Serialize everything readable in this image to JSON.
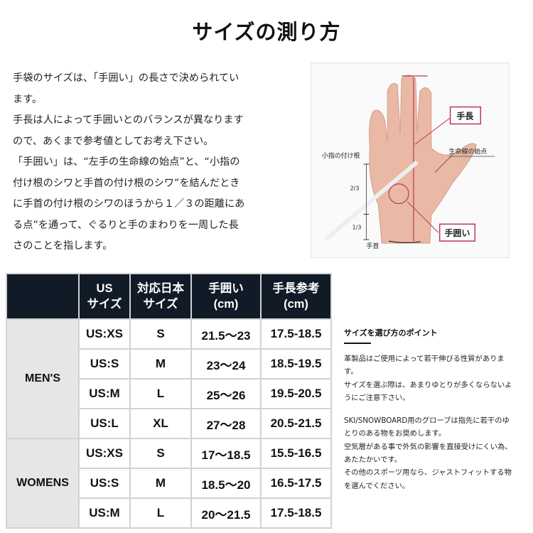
{
  "title": "サイズの測り方",
  "intro": [
    "手袋のサイズは、「手囲い」の長さで決められてい",
    "ます。",
    "手長は人によって手囲いとのバランスが異なります",
    "ので、あくまで参考値としてお考え下さい。",
    "「手囲い」は、“左手の生命線の始点”と、“小指の",
    "付け根のシワと手首の付け根のシワ”を結んだとき",
    "に手首の付け根のシワのほうから１／３の距離にあ",
    "る点”を通って、ぐるりと手のまわりを一周した長",
    "さのことを指します。"
  ],
  "photo": {
    "hand_length": "手長",
    "lifeline_start": "生命線の始点",
    "pinky_base": "小指の付け根",
    "two_thirds": "2/3",
    "one_third": "1/3",
    "wrist": "手首",
    "hand_circ": "手囲い",
    "accent": "#b8375a"
  },
  "table": {
    "headers": [
      [
        "",
        ""
      ],
      [
        "US",
        "サイズ"
      ],
      [
        "対応日本",
        "サイズ"
      ],
      [
        "手囲い",
        "(cm)"
      ],
      [
        "手長参考",
        "(cm)"
      ]
    ],
    "groups": [
      {
        "label": "MEN'S",
        "rows": [
          [
            "US:XS",
            "S",
            "21.5〜23",
            "17.5-18.5"
          ],
          [
            "US:S",
            "M",
            "23〜24",
            "18.5-19.5"
          ],
          [
            "US:M",
            "L",
            "25〜26",
            "19.5-20.5"
          ],
          [
            "US:L",
            "XL",
            "27〜28",
            "20.5-21.5"
          ]
        ]
      },
      {
        "label": "WOMENS",
        "rows": [
          [
            "US:XS",
            "S",
            "17〜18.5",
            "15.5-16.5"
          ],
          [
            "US:S",
            "M",
            "18.5〜20",
            "16.5-17.5"
          ],
          [
            "US:M",
            "L",
            "20〜21.5",
            "17.5-18.5"
          ]
        ]
      }
    ]
  },
  "tips": {
    "heading": "サイズを選び方のポイント",
    "para1": [
      "革製品はご使用によって若干伸びる性質がありま",
      "す。",
      "サイズを選ぶ際は、あまりゆとりが多くならないよ",
      "うにご注意下さい。"
    ],
    "para2": [
      "SKI/SNOWBOARD用のグローブは指先に若干のゆ",
      "とりのある物をお奨めします。",
      "空気層がある事で外気の影響を直接受けにくい為、",
      "あたたかいです。",
      "その他のスポーツ用なら、ジャストフィットする物",
      "を選んでください。"
    ]
  }
}
